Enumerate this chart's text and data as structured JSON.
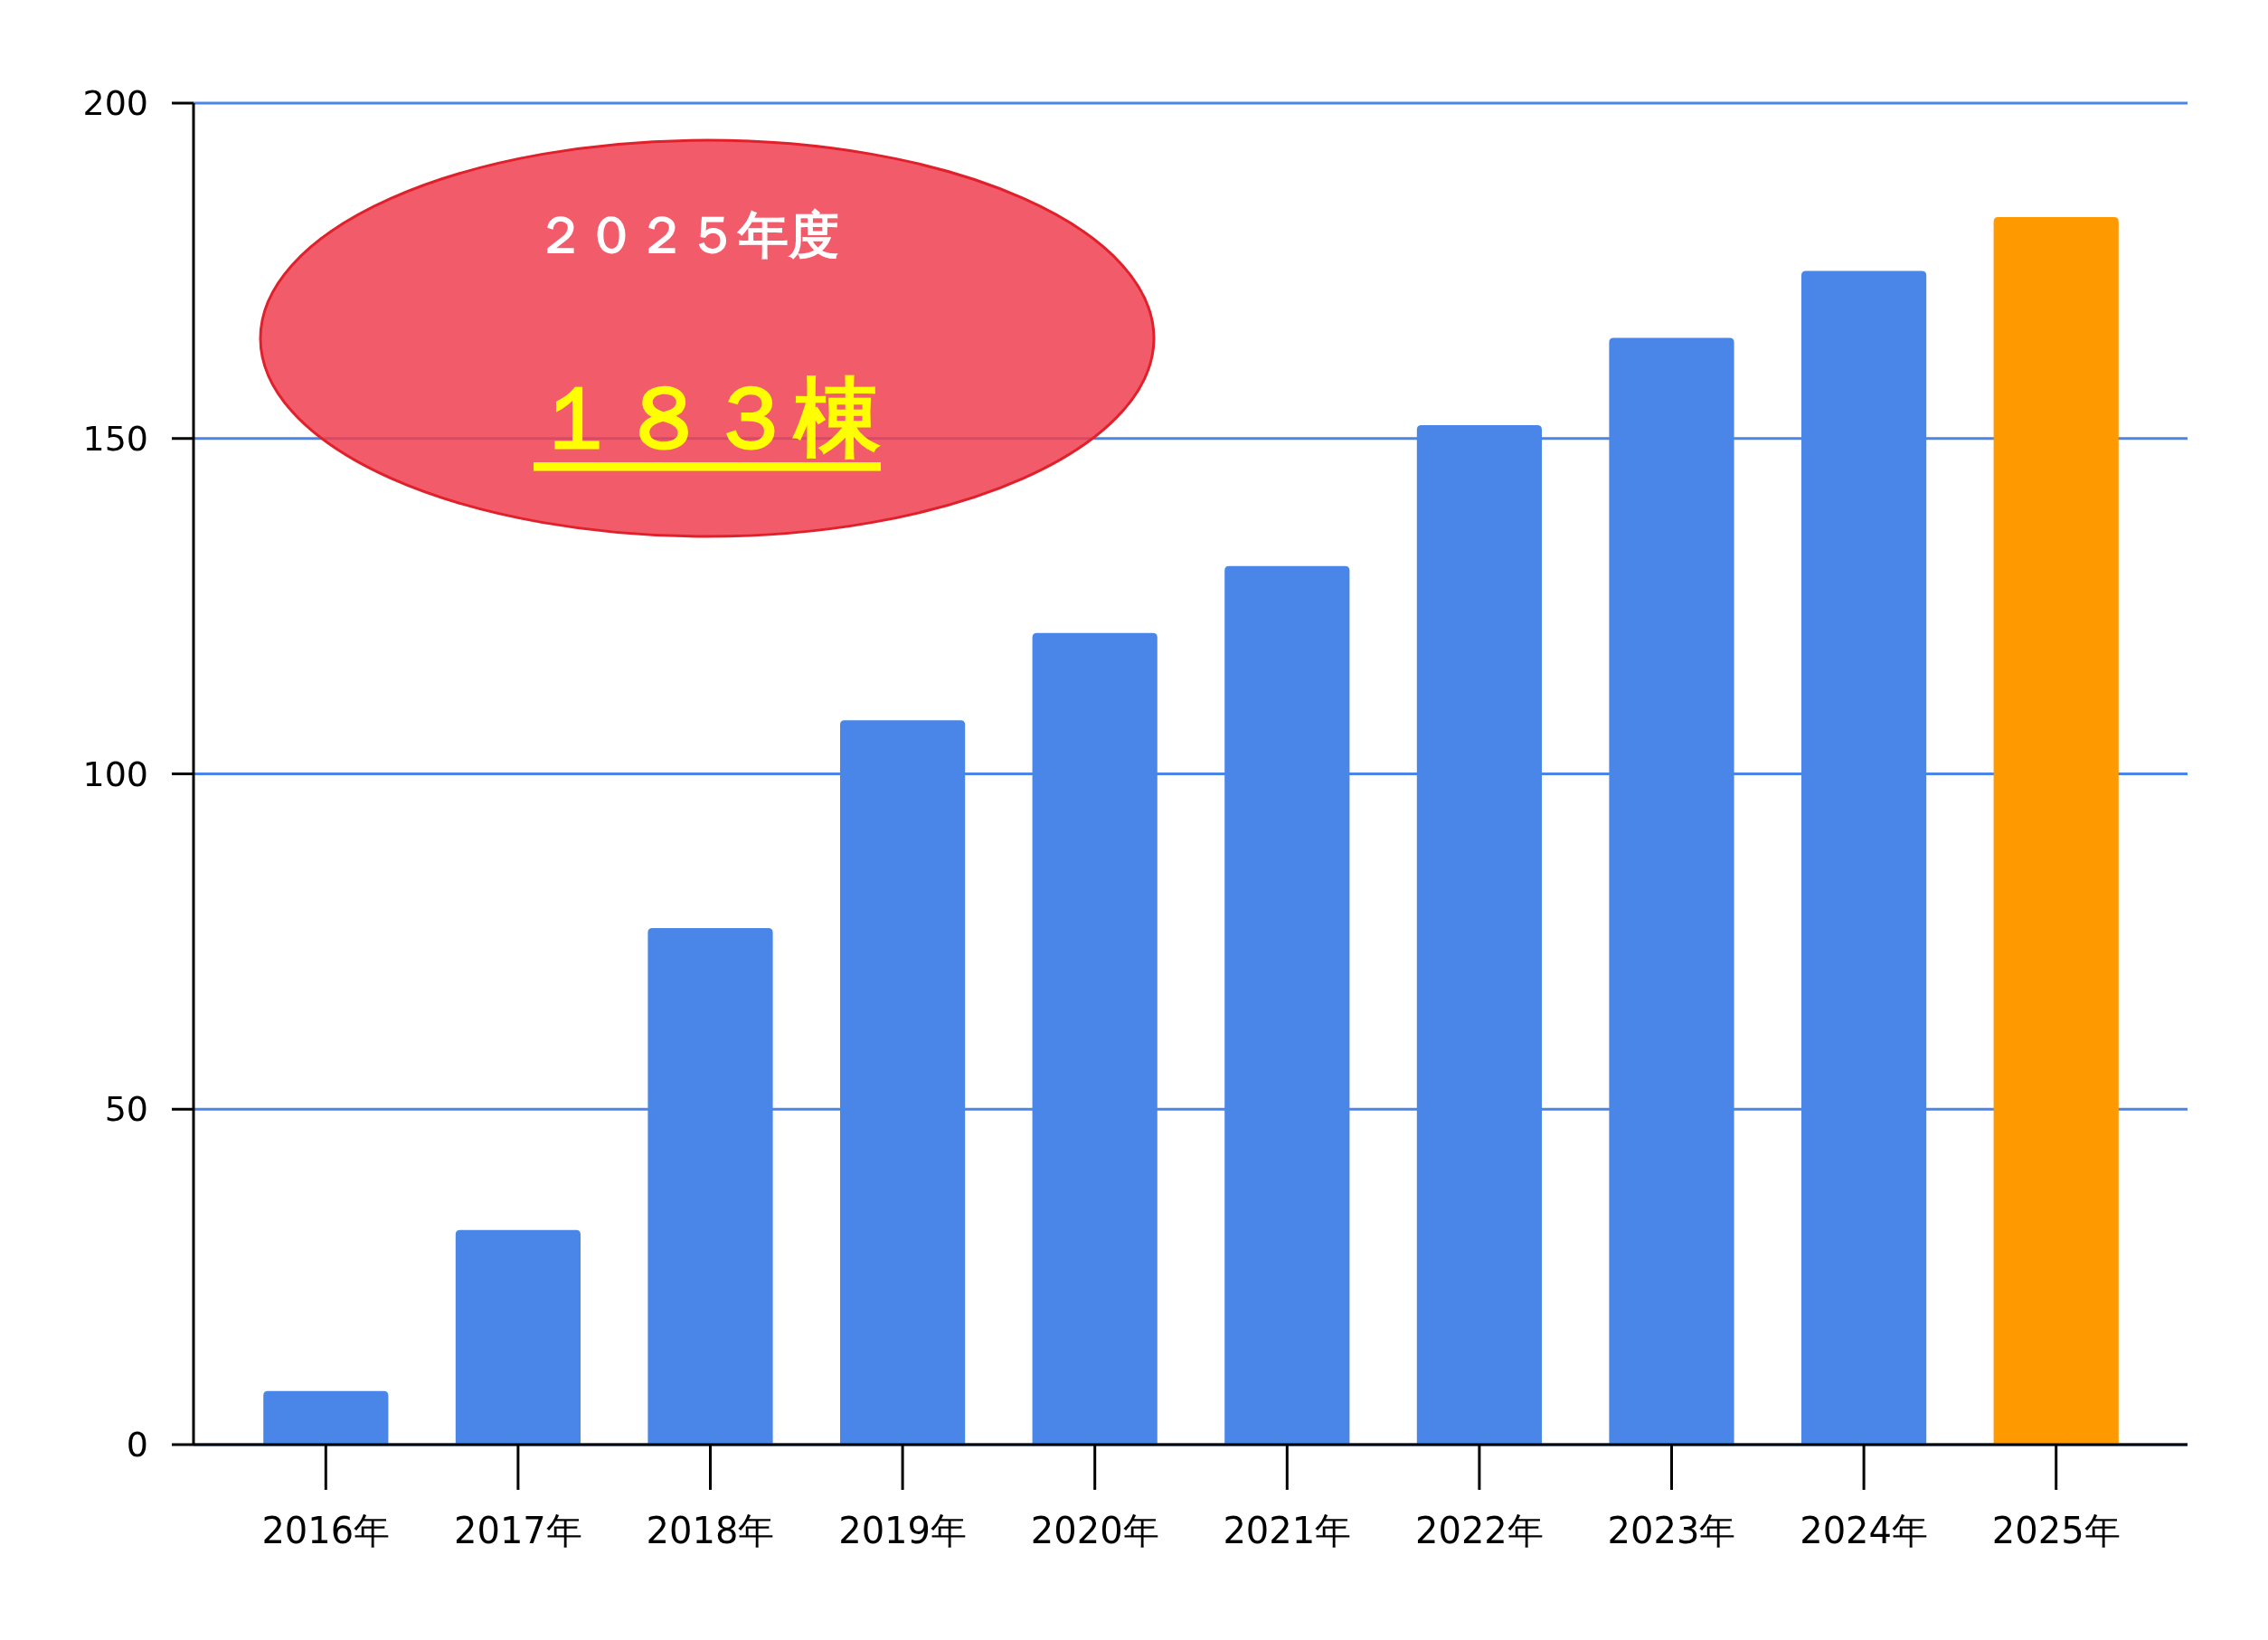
{
  "chart_data": {
    "type": "bar",
    "categories": [
      "2016年",
      "2017年",
      "2018年",
      "2019年",
      "2020年",
      "2021年",
      "2022年",
      "2023年",
      "2024年",
      "2025年"
    ],
    "values": [
      8,
      32,
      77,
      108,
      121,
      131,
      152,
      165,
      175,
      183
    ],
    "colors": [
      "#4a86e8",
      "#4a86e8",
      "#4a86e8",
      "#4a86e8",
      "#4a86e8",
      "#4a86e8",
      "#4a86e8",
      "#4a86e8",
      "#4a86e8",
      "#ff9900"
    ],
    "ylim": [
      0,
      200
    ],
    "yticks": [
      0,
      50,
      100,
      150,
      200
    ],
    "grid": "y",
    "annotations": [
      "２０２５年度",
      "１８３棟"
    ]
  }
}
